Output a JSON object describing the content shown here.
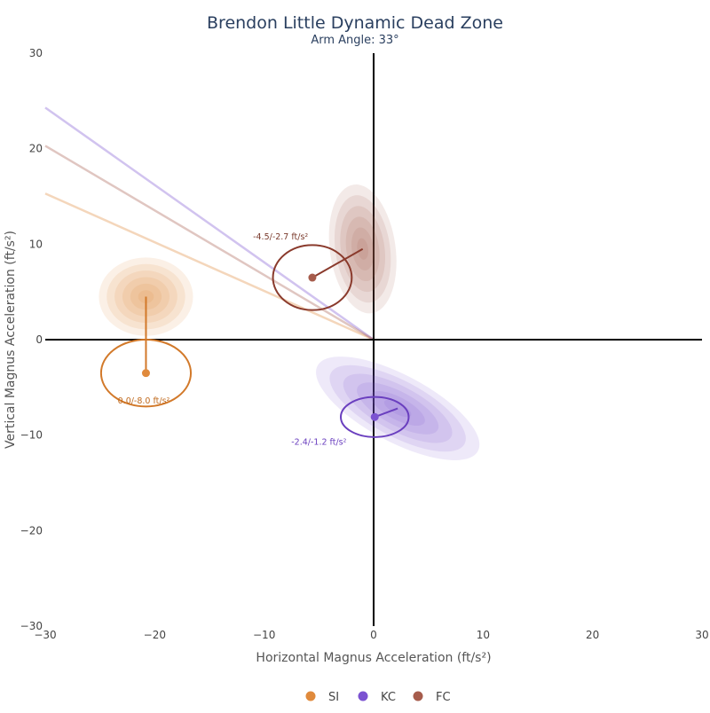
{
  "chart_data": {
    "type": "scatter",
    "title": "Brendon Little Dynamic Dead Zone",
    "subtitle": "Arm Angle: 33°",
    "xlabel": "Horizontal Magnus Acceleration (ft/s²)",
    "ylabel": "Vertical Magnus Acceleration (ft/s²)",
    "xlim": [
      -30,
      30
    ],
    "ylim": [
      -30,
      30
    ],
    "xticks": [
      {
        "value": -30,
        "label": "−30"
      },
      {
        "value": -20,
        "label": "−20"
      },
      {
        "value": -10,
        "label": "−10"
      },
      {
        "value": 0,
        "label": "0"
      },
      {
        "value": 10,
        "label": "10"
      },
      {
        "value": 20,
        "label": "20"
      },
      {
        "value": 30,
        "label": "30"
      }
    ],
    "yticks": [
      {
        "value": 30,
        "label": "30"
      },
      {
        "value": 20,
        "label": "20"
      },
      {
        "value": 10,
        "label": "10"
      },
      {
        "value": 0,
        "label": "0"
      },
      {
        "value": -10,
        "label": "−10"
      },
      {
        "value": -20,
        "label": "−20"
      },
      {
        "value": -30,
        "label": "−30"
      }
    ],
    "grid": false,
    "zero_lines": true,
    "legend_position": "bottom-center",
    "series": [
      {
        "name": "SI",
        "color": "#e08a3c",
        "spin_ellipse_color": "#d2792a",
        "annotation_color": "#c06a1e",
        "point": [
          -20.8,
          -3.5
        ],
        "movement_center": [
          -20.8,
          4.5
        ],
        "movement_spread": [
          4.3,
          4.1
        ],
        "movement_tilt_deg": 0,
        "spin_ellipse_radii": [
          4.1,
          3.5
        ],
        "line_end": [
          -30,
          15.3
        ],
        "annotation": "0.0/-8.0 ft/s²",
        "annotation_pos": [
          -21,
          -6.7
        ]
      },
      {
        "name": "KC",
        "color": "#7b52d1",
        "spin_ellipse_color": "#6a3fbf",
        "annotation_color": "#6a3fbf",
        "point": [
          0.1,
          -8.1
        ],
        "movement_center": [
          2.2,
          -7.2
        ],
        "movement_spread": [
          8.3,
          3.5
        ],
        "movement_tilt_deg": 28,
        "spin_ellipse_radii": [
          3.1,
          2.1
        ],
        "line_end": [
          -30,
          24.3
        ],
        "annotation": "-2.4/-1.2 ft/s²",
        "annotation_pos": [
          -5,
          -11
        ]
      },
      {
        "name": "FC",
        "color": "#a65c4c",
        "spin_ellipse_color": "#8a3a2c",
        "annotation_color": "#7a3a2c",
        "point": [
          -5.6,
          6.5
        ],
        "movement_center": [
          -1,
          9.5
        ],
        "movement_spread": [
          3.0,
          6.8
        ],
        "movement_tilt_deg": -8,
        "spin_ellipse_radii": [
          3.6,
          3.4
        ],
        "line_end": [
          -30,
          20.3
        ],
        "annotation": "-4.5/-2.7 ft/s²",
        "annotation_pos": [
          -8.5,
          10.5
        ]
      }
    ]
  }
}
